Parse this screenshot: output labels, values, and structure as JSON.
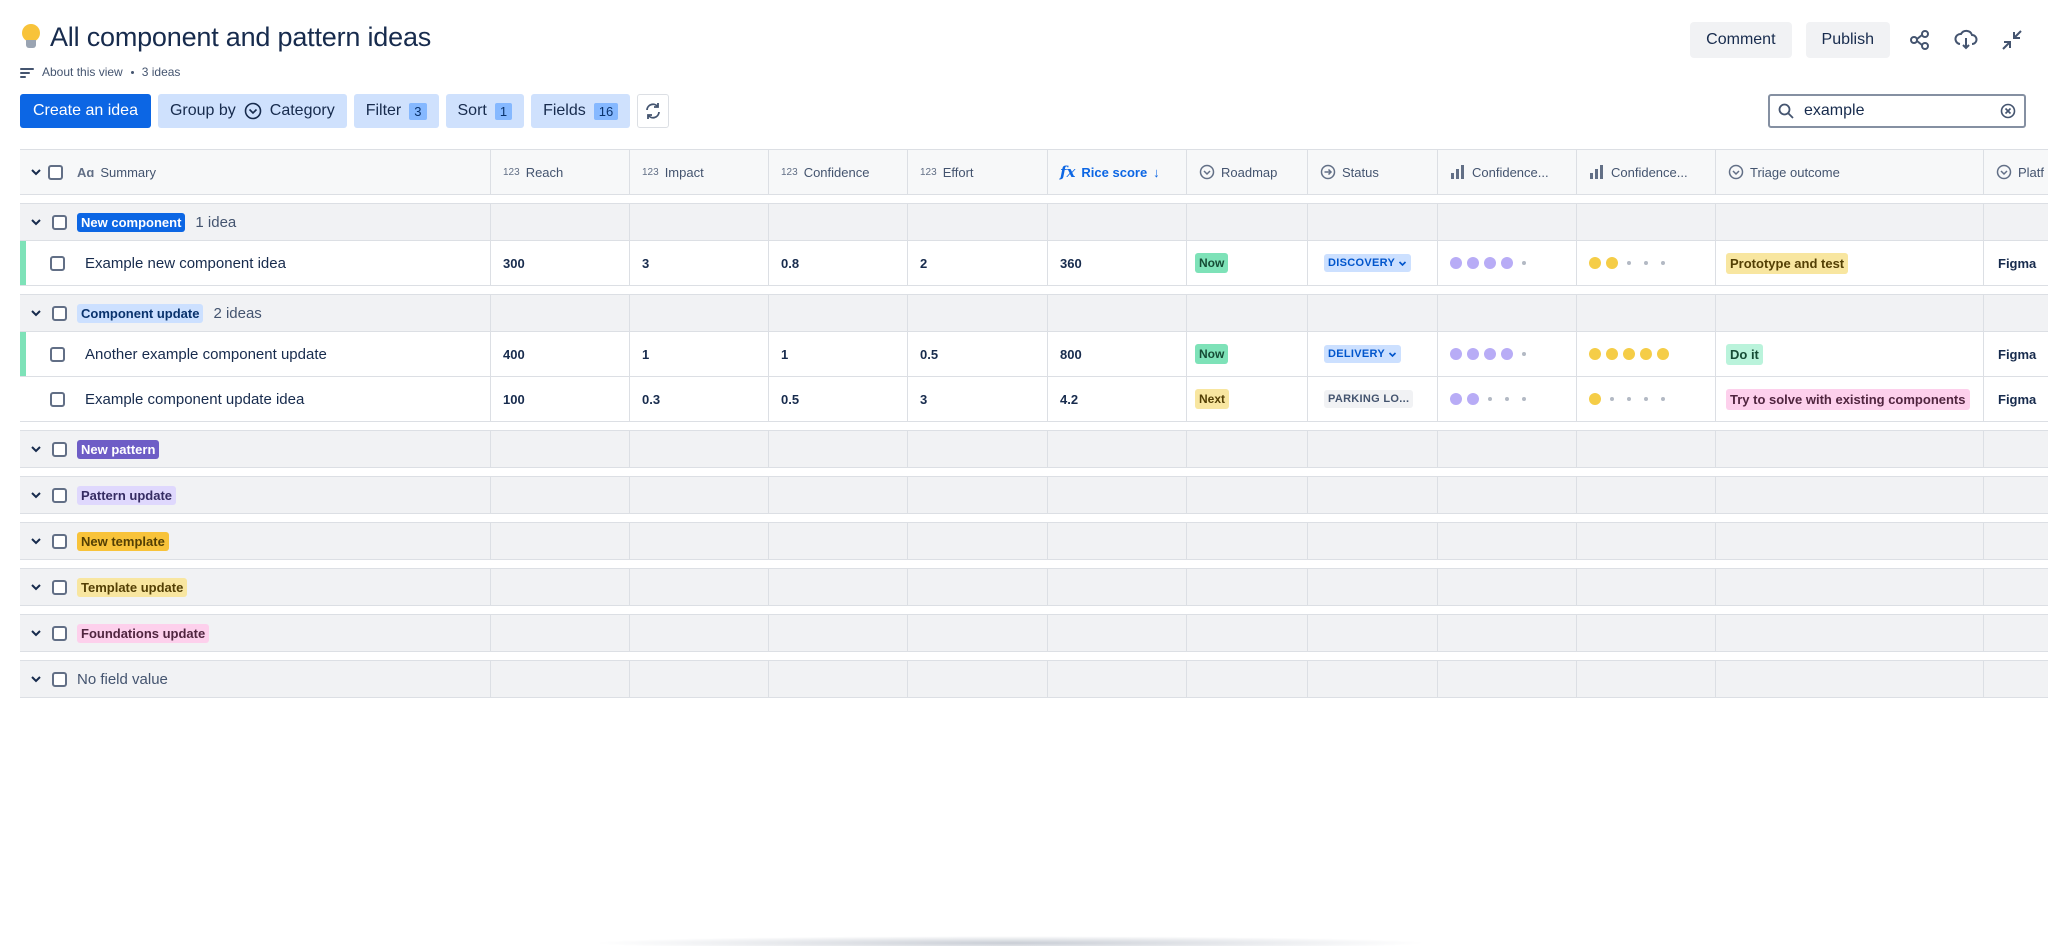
{
  "page": {
    "title": "All component and pattern ideas",
    "about": "About this view",
    "count": "3 ideas"
  },
  "top_actions": {
    "comment": "Comment",
    "publish": "Publish"
  },
  "toolbar": {
    "create": "Create an idea",
    "group_by": "Group by",
    "group_value": "Category",
    "filter": "Filter",
    "filter_count": "3",
    "sort": "Sort",
    "sort_count": "1",
    "fields": "Fields",
    "fields_count": "16"
  },
  "search": {
    "value": "example"
  },
  "columns": {
    "summary": "Summary",
    "reach": "Reach",
    "impact": "Impact",
    "confidence": "Confidence",
    "effort": "Effort",
    "rice": "Rice score",
    "roadmap": "Roadmap",
    "status": "Status",
    "conf_scale1": "Confidence...",
    "conf_scale2": "Confidence...",
    "triage": "Triage outcome",
    "platform": "Platf",
    "type_number": "123"
  },
  "groups": [
    {
      "tag": "New component",
      "color": "#0c66e4",
      "text_color": "#ffffff",
      "sub": "1 idea"
    },
    {
      "tag": "Component update",
      "color": "#cce0ff",
      "text_color": "#09326c",
      "sub": "2 ideas"
    },
    {
      "tag": "New pattern",
      "color": "#6e5dc6",
      "text_color": "#ffffff",
      "sub": ""
    },
    {
      "tag": "Pattern update",
      "color": "#dfd8fd",
      "text_color": "#352c63",
      "sub": ""
    },
    {
      "tag": "New template",
      "color": "#f8c33a",
      "text_color": "#533f04",
      "sub": ""
    },
    {
      "tag": "Template update",
      "color": "#f8e6a0",
      "text_color": "#533f04",
      "sub": ""
    },
    {
      "tag": "Foundations update",
      "color": "#fdd0ec",
      "text_color": "#50253f",
      "sub": ""
    },
    {
      "tag": "No field value",
      "sub": ""
    }
  ],
  "rows": [
    {
      "summary": "Example new component idea",
      "reach": "300",
      "impact": "3",
      "confidence": "0.8",
      "effort": "2",
      "rice": "360",
      "roadmap": "Now",
      "status": "DISCOVERY",
      "conf1": 4,
      "conf2": 2,
      "triage": "Prototype and test",
      "platform": "Figma"
    },
    {
      "summary": "Another example component update",
      "reach": "400",
      "impact": "1",
      "confidence": "1",
      "effort": "0.5",
      "rice": "800",
      "roadmap": "Now",
      "status": "DELIVERY",
      "conf1": 4,
      "conf2": 5,
      "triage": "Do it",
      "platform": "Figma"
    },
    {
      "summary": "Example component update idea",
      "reach": "100",
      "impact": "0.3",
      "confidence": "0.5",
      "effort": "3",
      "rice": "4.2",
      "roadmap": "Next",
      "status": "PARKING LO...",
      "conf1": 2,
      "conf2": 1,
      "triage": "Try to solve with existing components",
      "platform": "Figma"
    }
  ],
  "colors": {
    "roadmap_now": "#7ee2b8",
    "roadmap_next": "#f8e6a0",
    "status_discovery_bg": "#cce0ff",
    "status_discovery_fg": "#0055cc",
    "status_parking_bg": "#f1f2f4",
    "status_parking_fg": "#44546f",
    "triage_test": "#f8e6a0",
    "triage_do": "#baf3db",
    "triage_solve": "#fdd0ec",
    "dot_purple": "#b8acf6",
    "dot_yellow": "#f5cd47"
  }
}
